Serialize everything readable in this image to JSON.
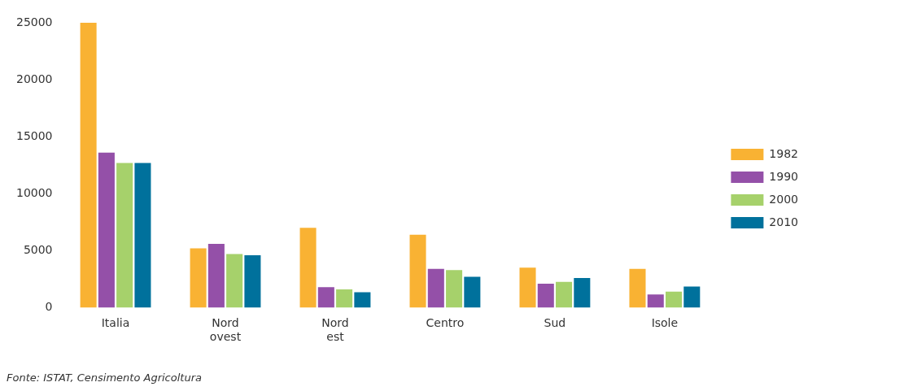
{
  "chart_data": {
    "type": "bar",
    "categories": [
      "Italia",
      "Nord ovest",
      "Nord est",
      "Centro",
      "Sud",
      "Isole"
    ],
    "series": [
      {
        "name": "1982",
        "color": "#f9b233",
        "values": [
          25000,
          5200,
          7000,
          6400,
          3500,
          3400
        ]
      },
      {
        "name": "1990",
        "color": "#9450a8",
        "values": [
          13600,
          5600,
          1800,
          3400,
          2100,
          1150
        ]
      },
      {
        "name": "2000",
        "color": "#a6d16b",
        "values": [
          12700,
          4700,
          1600,
          3300,
          2250,
          1400
        ]
      },
      {
        "name": "2010",
        "color": "#00719c",
        "values": [
          12700,
          4600,
          1350,
          2700,
          2600,
          1850
        ]
      }
    ],
    "ylim": [
      0,
      25000
    ],
    "yticks": [
      0,
      5000,
      10000,
      15000,
      20000,
      25000
    ],
    "grid": false,
    "legend": "right",
    "annotations": [
      "Fonte: ISTAT, Censimento Agricoltura"
    ]
  }
}
